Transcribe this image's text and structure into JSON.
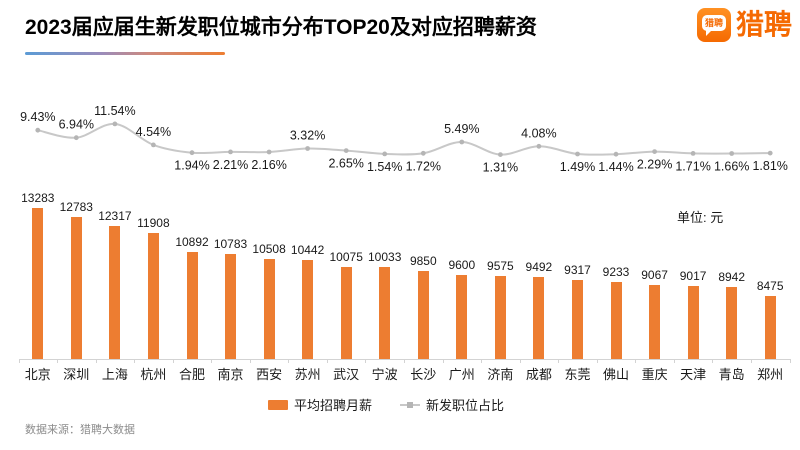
{
  "header": {
    "title": "2023届应届生新发职位城市分布TOP20及对应招聘薪资",
    "logo": {
      "icon_text": "猎聘",
      "wordmark": "猎聘",
      "brand_color": "#F56A02"
    }
  },
  "chart_data": {
    "type": "bar",
    "title": "2023届应届生新发职位城市分布TOP20及对应招聘薪资",
    "unit_label": "单位: 元",
    "categories": [
      "北京",
      "深圳",
      "上海",
      "杭州",
      "合肥",
      "南京",
      "西安",
      "苏州",
      "武汉",
      "宁波",
      "长沙",
      "广州",
      "济南",
      "成都",
      "东莞",
      "佛山",
      "重庆",
      "天津",
      "青岛",
      "郑州"
    ],
    "series": [
      {
        "name": "平均招聘月薪",
        "type": "bar",
        "color": "#ED7D31",
        "values": [
          13283,
          12783,
          12317,
          11908,
          10892,
          10783,
          10508,
          10442,
          10075,
          10033,
          9850,
          9600,
          9575,
          9492,
          9317,
          9233,
          9067,
          9017,
          8942,
          8475
        ]
      },
      {
        "name": "新发职位占比",
        "type": "line",
        "color": "#C8C8C8",
        "marker_color": "#B5B5B5",
        "label_suffix": "%",
        "values": [
          9.43,
          6.94,
          11.54,
          4.54,
          1.94,
          2.21,
          2.16,
          3.32,
          2.65,
          1.54,
          1.72,
          5.49,
          1.31,
          4.08,
          1.49,
          1.44,
          2.29,
          1.71,
          1.66,
          1.81
        ]
      }
    ],
    "bar_axis_range": [
      5000,
      13500
    ],
    "grid": false,
    "legend_position": "bottom"
  },
  "footer": {
    "source": "数据来源：猎聘大数据"
  }
}
